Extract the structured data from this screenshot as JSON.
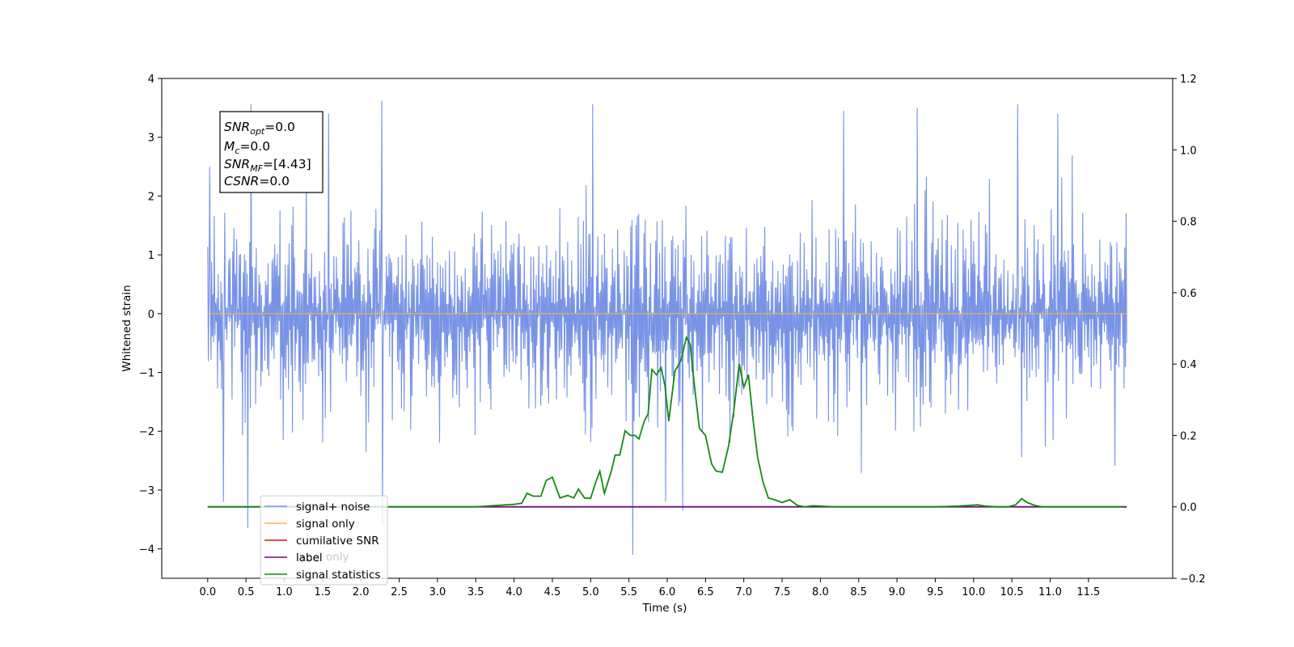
{
  "chart_data": {
    "type": "line",
    "title": "",
    "xlabel": "Time (s)",
    "ylabel": "Whitened strain",
    "y2label": "",
    "xlim": [
      -0.6,
      12.6
    ],
    "ylim": [
      -4.5,
      4.0
    ],
    "y2lim": [
      -0.2,
      1.2
    ],
    "xticks": [
      "0.0",
      "0.5",
      "1.0",
      "1.5",
      "2.0",
      "2.5",
      "3.0",
      "3.5",
      "4.0",
      "4.5",
      "5.0",
      "5.5",
      "6.0",
      "6.5",
      "7.0",
      "7.5",
      "8.0",
      "8.5",
      "9.0",
      "9.5",
      "10.0",
      "10.5",
      "11.0",
      "11.5"
    ],
    "yticks": [
      "4",
      "3",
      "2",
      "1",
      "0",
      "−1",
      "−2",
      "−3",
      "−4"
    ],
    "y2ticks": [
      "1.2",
      "1.0",
      "0.8",
      "0.6",
      "0.4",
      "0.2",
      "0.0",
      "−0.2"
    ],
    "legend_placement": "lower-left",
    "grid": false,
    "colors": {
      "signal_noise": "#7893e6",
      "signal_only": "#f5b942",
      "cumulative_snr": "#e01010",
      "label": "#6a0f70",
      "signal_statistics": "#138a13"
    },
    "series": [
      {
        "name": "signal+ noise",
        "axis": "left",
        "noise": {
          "t_start": 0.0,
          "t_end": 12.0,
          "max": 3.62,
          "min": -4.1,
          "typical_range": [
            -2.2,
            2.3
          ]
        },
        "spikes": [
          {
            "x": 0.03,
            "y": 2.5
          },
          {
            "x": 0.57,
            "y": 3.56
          },
          {
            "x": 1.58,
            "y": 3.4
          },
          {
            "x": 2.27,
            "y": 3.62
          },
          {
            "x": 5.03,
            "y": 3.56
          },
          {
            "x": 8.3,
            "y": 3.45
          },
          {
            "x": 9.26,
            "y": 3.5
          },
          {
            "x": 10.58,
            "y": 3.56
          },
          {
            "x": 11.1,
            "y": 3.4
          },
          {
            "x": 0.52,
            "y": -3.65
          },
          {
            "x": 0.21,
            "y": -3.2
          },
          {
            "x": 2.28,
            "y": -3.6
          },
          {
            "x": 5.55,
            "y": -4.1
          },
          {
            "x": 6.2,
            "y": -3.35
          },
          {
            "x": 5.98,
            "y": -3.2
          }
        ]
      },
      {
        "name": "signal only",
        "axis": "left",
        "x": [
          0.0,
          12.0
        ],
        "y": [
          0.0,
          0.0
        ]
      },
      {
        "name": "cumilative SNR",
        "axis": "right",
        "x": [],
        "y": []
      },
      {
        "name": "label",
        "axis": "right",
        "x": [
          0.0,
          12.0
        ],
        "y": [
          0.0,
          0.0
        ]
      },
      {
        "name": "signal statistics",
        "axis": "right",
        "x": [
          0.0,
          0.5,
          1.0,
          1.5,
          2.0,
          2.5,
          3.0,
          3.5,
          3.9,
          4.0,
          4.1,
          4.17,
          4.25,
          4.35,
          4.42,
          4.5,
          4.6,
          4.7,
          4.78,
          4.84,
          4.92,
          5.0,
          5.06,
          5.12,
          5.18,
          5.27,
          5.32,
          5.38,
          5.45,
          5.52,
          5.58,
          5.63,
          5.7,
          5.75,
          5.8,
          5.86,
          5.92,
          5.97,
          6.02,
          6.1,
          6.18,
          6.25,
          6.3,
          6.36,
          6.42,
          6.5,
          6.58,
          6.64,
          6.72,
          6.8,
          6.87,
          6.94,
          7.0,
          7.06,
          7.12,
          7.18,
          7.25,
          7.32,
          7.4,
          7.5,
          7.6,
          7.7,
          7.8,
          7.9,
          8.0,
          8.2,
          8.5,
          9.0,
          9.5,
          9.8,
          9.95,
          10.05,
          10.15,
          10.3,
          10.45,
          10.55,
          10.63,
          10.7,
          10.8,
          10.9,
          11.1,
          11.5,
          11.95
        ],
        "y": [
          0.0,
          0.0,
          0.0,
          0.0,
          0.0,
          0.0,
          0.0,
          0.0,
          0.006,
          0.007,
          0.01,
          0.038,
          0.03,
          0.03,
          0.074,
          0.083,
          0.025,
          0.032,
          0.025,
          0.05,
          0.025,
          0.024,
          0.065,
          0.1,
          0.038,
          0.1,
          0.145,
          0.145,
          0.213,
          0.2,
          0.2,
          0.19,
          0.24,
          0.26,
          0.385,
          0.37,
          0.39,
          0.34,
          0.24,
          0.38,
          0.41,
          0.475,
          0.455,
          0.33,
          0.22,
          0.2,
          0.12,
          0.1,
          0.097,
          0.17,
          0.27,
          0.4,
          0.335,
          0.37,
          0.245,
          0.14,
          0.07,
          0.025,
          0.02,
          0.012,
          0.02,
          0.004,
          0.0,
          0.003,
          0.002,
          0.0,
          0.0,
          0.0,
          0.0,
          0.002,
          0.004,
          0.006,
          0.002,
          0.0,
          0.0,
          0.006,
          0.023,
          0.012,
          0.004,
          0.0,
          0.0,
          0.0,
          0.0
        ]
      }
    ]
  },
  "annotation": {
    "snr_opt": {
      "symbol": "SNR",
      "sub": "opt",
      "value": "=0.0"
    },
    "mc": {
      "symbol": "M",
      "sub": "c",
      "value": "=0.0"
    },
    "snr_mf": {
      "symbol": "SNR",
      "sub": "MF",
      "value": "=[4.43]"
    },
    "csnr": {
      "symbol": "CSNR",
      "sub": "",
      "value": "=0.0"
    }
  },
  "legend": {
    "items": [
      {
        "label": "signal+ noise",
        "color": "#7893e6"
      },
      {
        "label": "signal only",
        "color": "#f5b942"
      },
      {
        "label": "cumilative SNR",
        "color": "#e01010"
      },
      {
        "label": "label",
        "color": "#6a0f70"
      },
      {
        "label": "signal statistics",
        "color": "#138a13"
      }
    ],
    "ghost_label": "label only"
  }
}
